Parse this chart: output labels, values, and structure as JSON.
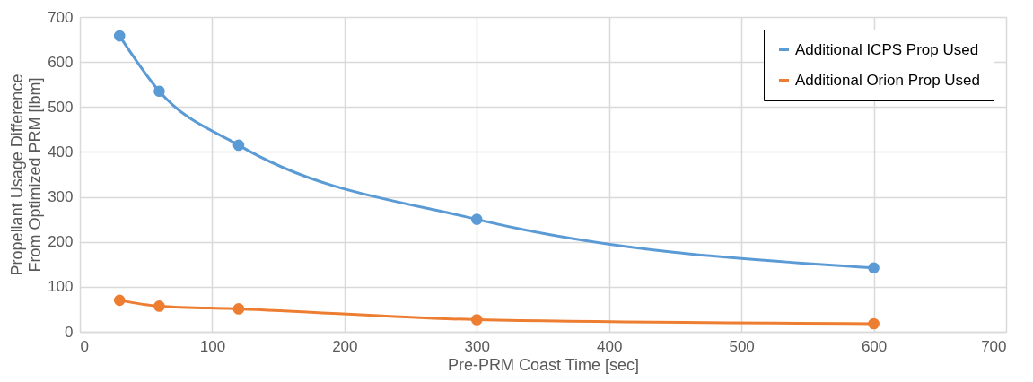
{
  "chart_data": {
    "type": "line",
    "xlabel": "Pre-PRM Coast Time [sec]",
    "ylabel": "Propellant Usage Difference From Optimized PRM [lbm]",
    "x": [
      30,
      60,
      120,
      300,
      600
    ],
    "series": [
      {
        "name": "Additional ICPS Prop Used",
        "color": "#5b9bd5",
        "values": [
          658,
          535,
          415,
          250,
          142
        ]
      },
      {
        "name": "Additional Orion Prop Used",
        "color": "#ed7d31",
        "values": [
          70,
          57,
          51,
          27,
          18
        ]
      }
    ],
    "xlim": [
      0,
      700
    ],
    "xticks": [
      0,
      100,
      200,
      300,
      400,
      500,
      600,
      700
    ],
    "ylim": [
      0,
      700
    ],
    "yticks": [
      0,
      100,
      200,
      300,
      400,
      500,
      600,
      700
    ],
    "grid": true,
    "legend": "top right",
    "marker": "circle",
    "line_style": "solid"
  }
}
